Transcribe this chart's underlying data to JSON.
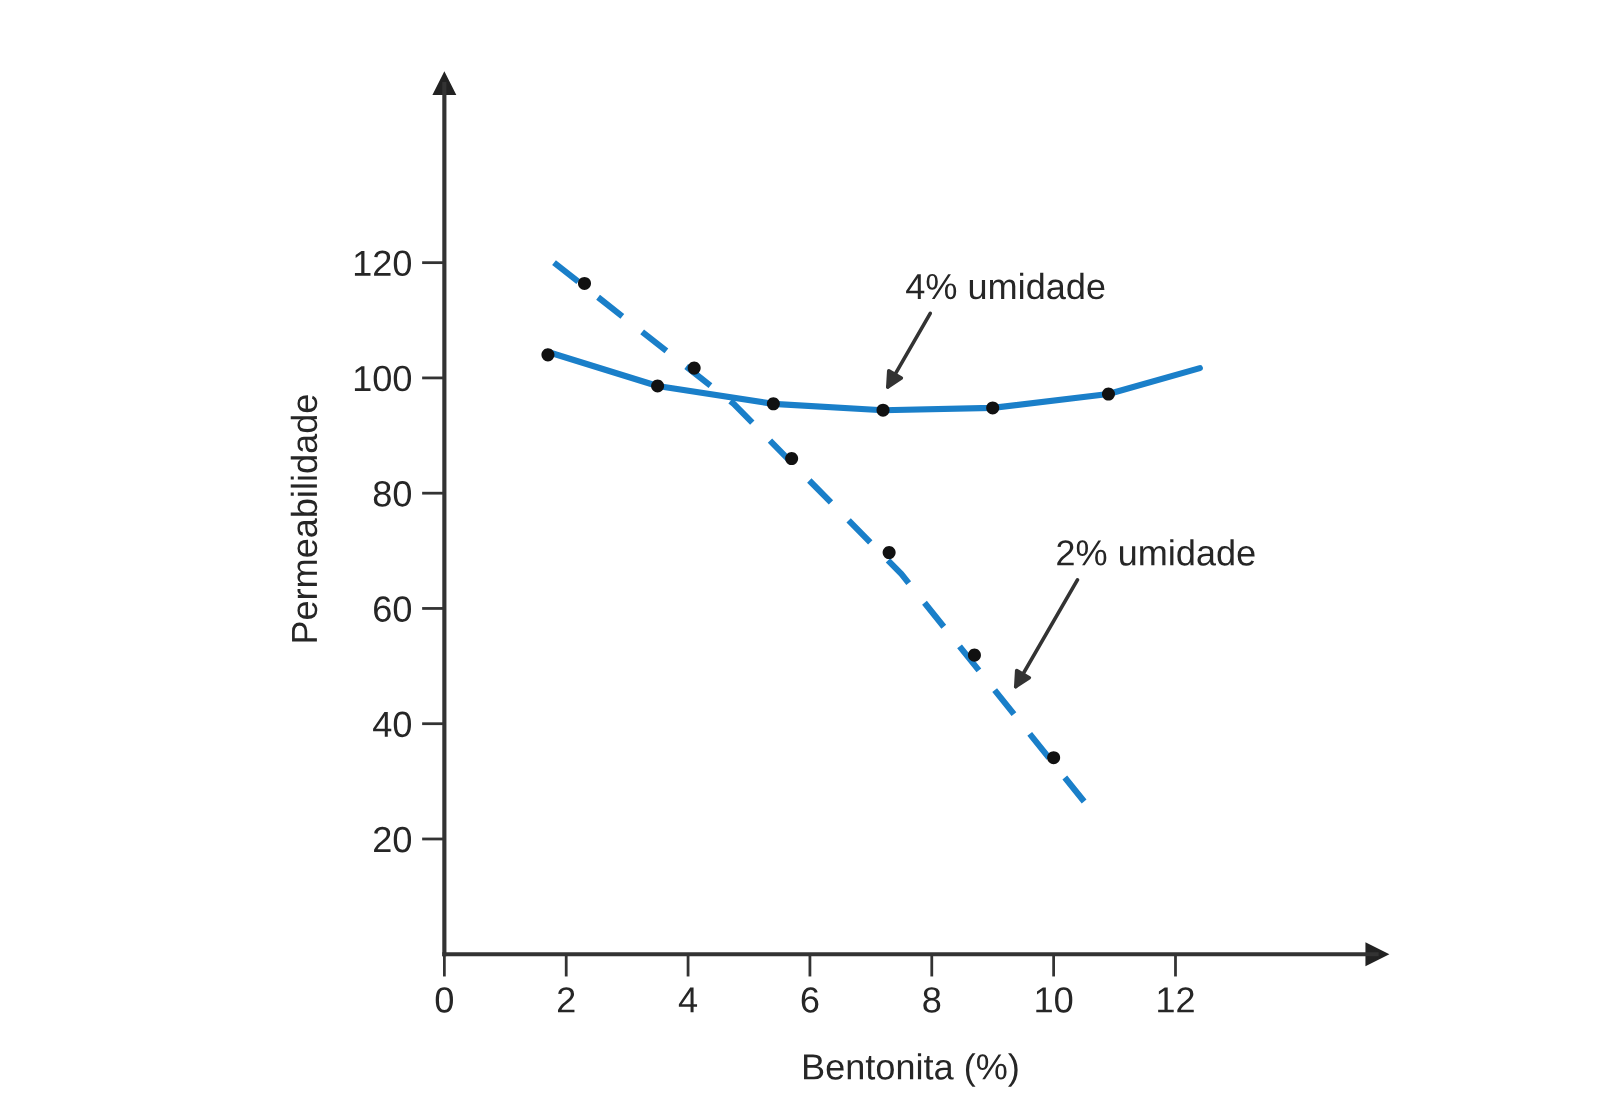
{
  "chart_data": {
    "type": "line",
    "xlabel": "Bentonita (%)",
    "ylabel": "Permeabilidade",
    "xlim": [
      0,
      15.3
    ],
    "ylim": [
      0,
      151
    ],
    "xticks": [
      0,
      2,
      4,
      6,
      8,
      10,
      12
    ],
    "yticks": [
      20,
      40,
      60,
      80,
      100,
      120
    ],
    "grid": false,
    "legend": false,
    "series": [
      {
        "line_style": "solid",
        "color": "#1a7fc9",
        "x": [
          1.7,
          3.5,
          5.4,
          7.2,
          9.0,
          10.9,
          12.4
        ],
        "values": [
          104.5,
          98.6,
          95.5,
          94.4,
          94.8,
          97.2,
          101.7
        ]
      },
      {
        "line_style": "dashed",
        "color": "#1a7fc9",
        "x": [
          1.8,
          4.75,
          7.5,
          10.5
        ],
        "values": [
          120,
          95.5,
          66,
          26.5
        ]
      },
      {
        "type": "scatter",
        "marker": "circle",
        "color": "#111111",
        "x": [
          1.7,
          3.5,
          5.4,
          7.2,
          9.0,
          10.9
        ],
        "values": [
          104,
          98.6,
          95.5,
          94.4,
          94.8,
          97.2
        ]
      },
      {
        "type": "scatter",
        "marker": "circle",
        "color": "#111111",
        "x": [
          2.3,
          4.1,
          5.7,
          7.3,
          8.7,
          10.0
        ],
        "values": [
          116.4,
          101.7,
          86,
          69.7,
          51.9,
          34.1
        ]
      }
    ],
    "annotations": [
      {
        "text": "4% umidade",
        "x": 7.2,
        "y": 97
      },
      {
        "text": "2% umidade",
        "x": 9.3,
        "y": 45
      }
    ]
  }
}
